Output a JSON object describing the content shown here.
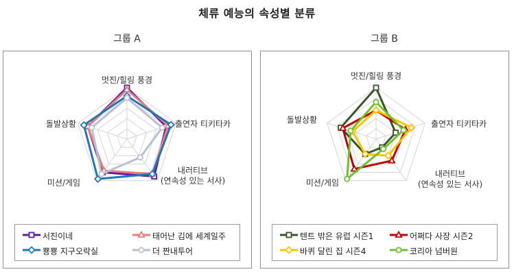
{
  "title": "체류 예능의 속성별 분류",
  "axes": [
    "멋진/힐링 풍경",
    "출연자 티키타카",
    "내러티브\n(연속성 있는 서사)",
    "미션/게임",
    "돌발상황"
  ],
  "chart_data": [
    {
      "type": "radar",
      "title": "그룹 A",
      "axes": [
        "멋진/힐링 풍경",
        "출연자 티키타카",
        "내러티브 (연속성 있는 서사)",
        "미션/게임",
        "돌발상황"
      ],
      "rmax": 5,
      "grid": true,
      "legend_position": "bottom",
      "series": [
        {
          "name": "서진이네",
          "color": "#5b1aa8",
          "marker": "square",
          "values": [
            5,
            4,
            4.5,
            4,
            4
          ]
        },
        {
          "name": "태어난 김에 세계일주",
          "color": "#ee7b7b",
          "marker": "triangle",
          "values": [
            4.8,
            4.2,
            4.2,
            3.8,
            4
          ]
        },
        {
          "name": "뿅뿅 지구오락실",
          "color": "#1f78b4",
          "marker": "diamond",
          "values": [
            4.2,
            4.5,
            4.2,
            4.8,
            4.4
          ]
        },
        {
          "name": "더 짠내투어",
          "color": "#b8bfd0",
          "marker": "circle",
          "values": [
            4,
            3.6,
            2.2,
            4.2,
            3.6
          ]
        }
      ]
    },
    {
      "type": "radar",
      "title": "그룹 B",
      "axes": [
        "멋진/힐링 풍경",
        "출연자 티키타카",
        "내러티브 (연속성 있는 서사)",
        "미션/게임",
        "돌발상황"
      ],
      "rmax": 5,
      "grid": true,
      "legend_position": "bottom",
      "series": [
        {
          "name": "텐트 밖은 유럽 시즌1",
          "color": "#375623",
          "marker": "square",
          "values": [
            5,
            2,
            1,
            1.8,
            3.6
          ]
        },
        {
          "name": "어쩌다 사장 시즌2",
          "color": "#c00000",
          "marker": "triangle",
          "values": [
            2.8,
            3,
            2.6,
            3.6,
            3.4
          ]
        },
        {
          "name": "바퀴 달린 집 시즌4",
          "color": "#ffc000",
          "marker": "diamond",
          "values": [
            2.8,
            3.6,
            2,
            1.8,
            2.4
          ]
        },
        {
          "name": "코리아 넘버원",
          "color": "#70c02c",
          "marker": "circle",
          "values": [
            3.6,
            2.8,
            1.2,
            4.8,
            2.6
          ]
        }
      ]
    }
  ]
}
